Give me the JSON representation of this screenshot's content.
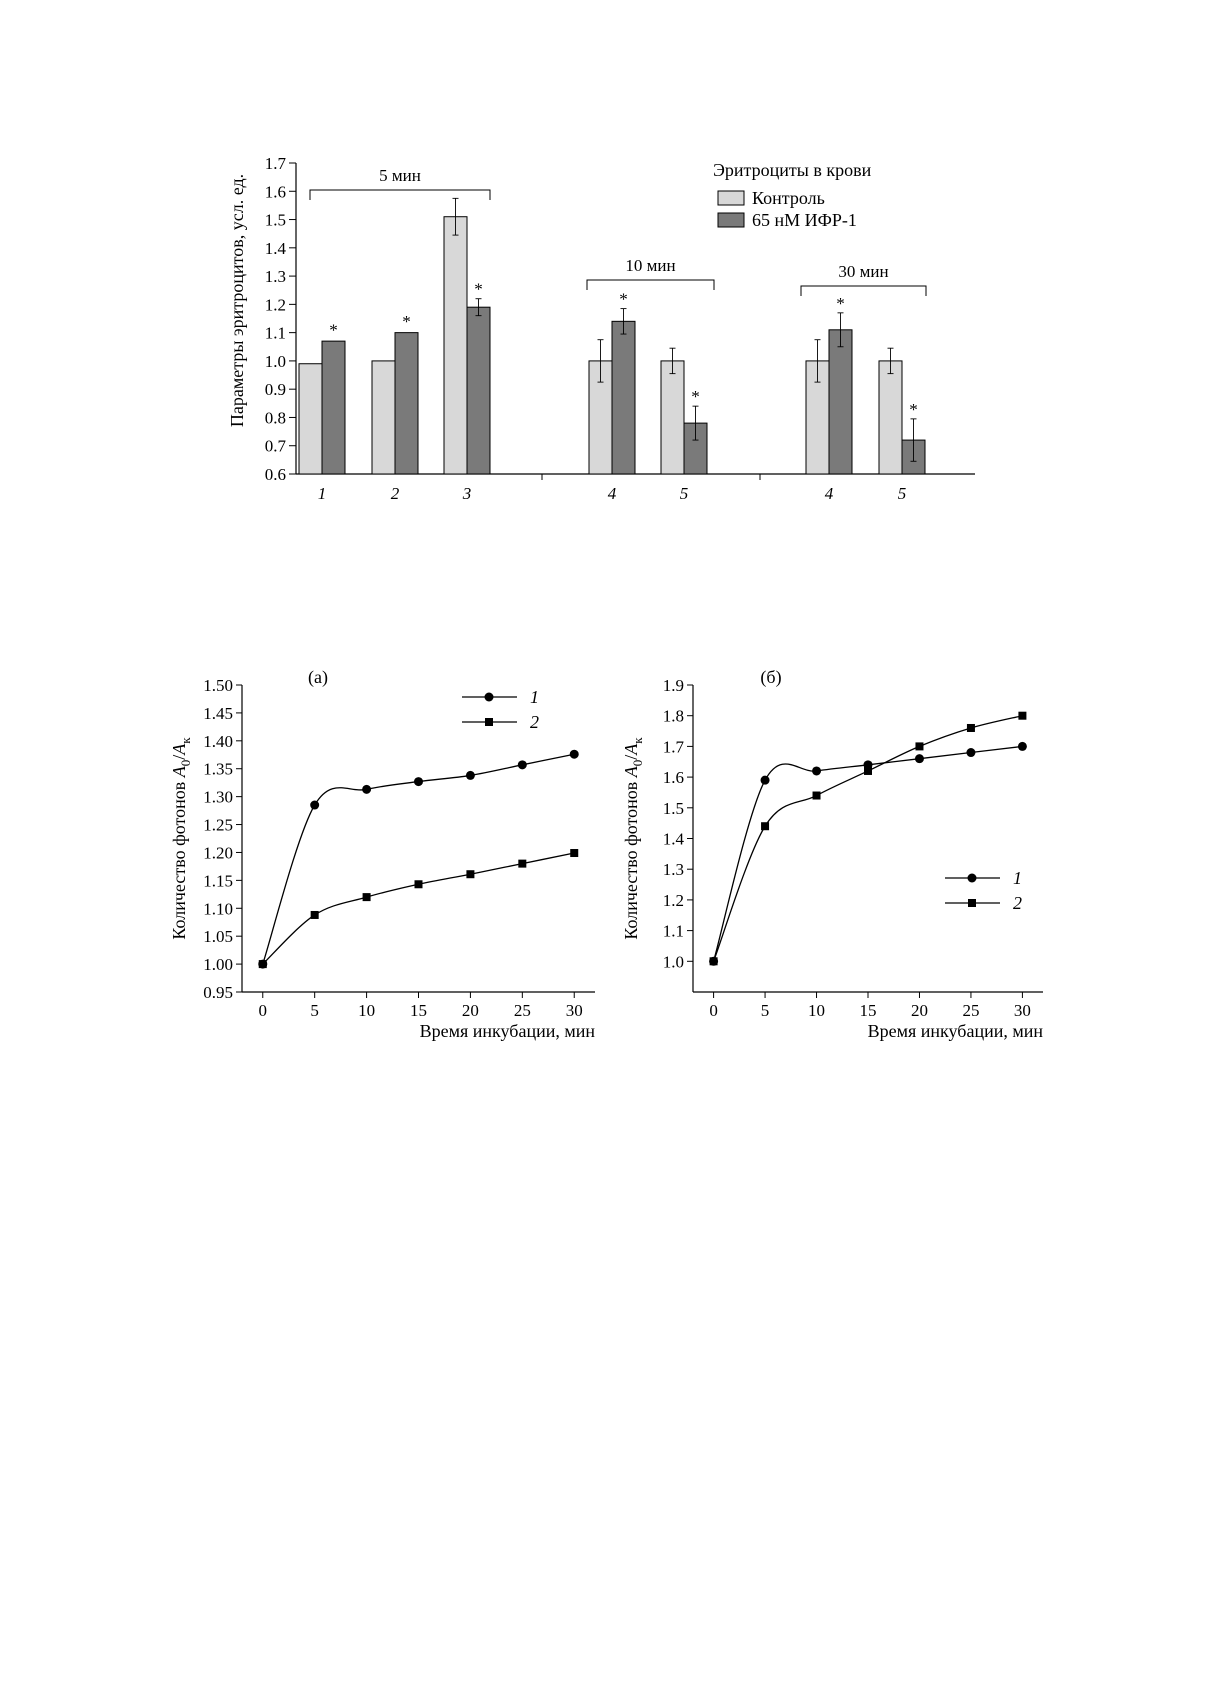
{
  "chart_data": [
    {
      "type": "bar",
      "ylabel": "Параметры эритроцитов, усл. ед.",
      "ylim": [
        0.6,
        1.7
      ],
      "yticks": [
        "0.6",
        "0.7",
        "0.8",
        "0.9",
        "1.0",
        "1.1",
        "1.2",
        "1.3",
        "1.4",
        "1.5",
        "1.6",
        "1.7"
      ],
      "legend": {
        "title": "Эритроциты в крови",
        "position": "top-right"
      },
      "series": [
        {
          "name": "Контроль",
          "color": "#d8d8d8"
        },
        {
          "name": "65 нМ ИФР-1",
          "color": "#7a7a7a"
        }
      ],
      "groups": [
        {
          "bracket": "5 мин",
          "categories": [
            {
              "label": "1",
              "values": [
                0.99,
                1.07
              ],
              "errors": [
                0.005,
                0.005
              ],
              "significant": [
                "",
                "*"
              ]
            },
            {
              "label": "2",
              "values": [
                1.0,
                1.1
              ],
              "errors": [
                0.005,
                0.005
              ],
              "significant": [
                "",
                "*"
              ]
            },
            {
              "label": "3",
              "values": [
                1.51,
                1.19
              ],
              "errors": [
                0.065,
                0.03
              ],
              "significant": [
                "",
                "*"
              ]
            }
          ]
        },
        {
          "bracket": "10 мин",
          "categories": [
            {
              "label": "4",
              "values": [
                1.0,
                1.14
              ],
              "errors": [
                0.075,
                0.045
              ],
              "significant": [
                "",
                "*"
              ]
            },
            {
              "label": "5",
              "values": [
                1.0,
                0.78
              ],
              "errors": [
                0.045,
                0.06
              ],
              "significant": [
                "",
                "*"
              ]
            }
          ]
        },
        {
          "bracket": "30 мин",
          "categories": [
            {
              "label": "4",
              "values": [
                1.0,
                1.11
              ],
              "errors": [
                0.075,
                0.06
              ],
              "significant": [
                "",
                "*"
              ]
            },
            {
              "label": "5",
              "values": [
                1.0,
                0.72
              ],
              "errors": [
                0.045,
                0.075
              ],
              "significant": [
                "",
                "*"
              ]
            }
          ]
        }
      ]
    },
    {
      "type": "line",
      "panel": "(а)",
      "xlabel": "Время инкубации, мин",
      "ylabel_prefix": "Количество фотонов ",
      "ylabel_a": "A",
      "ylabel_sub0": "0",
      "ylabel_slash": "/",
      "ylabel_b": "A",
      "ylabel_subk": "к",
      "xlim": [
        -2,
        32
      ],
      "ylim": [
        0.95,
        1.5
      ],
      "xticks": [
        "0",
        "5",
        "10",
        "15",
        "20",
        "25",
        "30"
      ],
      "yticks": [
        "0.95",
        "1.00",
        "1.05",
        "1.10",
        "1.15",
        "1.20",
        "1.25",
        "1.30",
        "1.35",
        "1.40",
        "1.45",
        "1.50"
      ],
      "legend_position": "top-right",
      "x": [
        0,
        5,
        10,
        15,
        20,
        25,
        30
      ],
      "series": [
        {
          "name": "1",
          "marker": "circle",
          "values": [
            1.0,
            1.285,
            1.313,
            1.327,
            1.338,
            1.357,
            1.376
          ]
        },
        {
          "name": "2",
          "marker": "square",
          "values": [
            1.0,
            1.088,
            1.12,
            1.143,
            1.161,
            1.18,
            1.199
          ]
        }
      ]
    },
    {
      "type": "line",
      "panel": "(б)",
      "xlabel": "Время инкубации, мин",
      "ylabel_prefix": "Количество фотонов ",
      "ylabel_a": "A",
      "ylabel_sub0": "0",
      "ylabel_slash": "/",
      "ylabel_b": "A",
      "ylabel_subk": "к",
      "xlim": [
        -2,
        32
      ],
      "ylim": [
        0.9,
        1.9
      ],
      "xticks": [
        "0",
        "5",
        "10",
        "15",
        "20",
        "25",
        "30"
      ],
      "yticks": [
        "1.0",
        "1.1",
        "1.2",
        "1.3",
        "1.4",
        "1.5",
        "1.6",
        "1.7",
        "1.8",
        "1.9"
      ],
      "legend_position": "middle-right",
      "x": [
        0,
        5,
        10,
        15,
        20,
        25,
        30
      ],
      "series": [
        {
          "name": "1",
          "marker": "circle",
          "values": [
            1.0,
            1.59,
            1.62,
            1.64,
            1.66,
            1.68,
            1.7
          ]
        },
        {
          "name": "2",
          "marker": "square",
          "values": [
            1.0,
            1.44,
            1.54,
            1.62,
            1.7,
            1.76,
            1.8
          ]
        }
      ]
    }
  ]
}
